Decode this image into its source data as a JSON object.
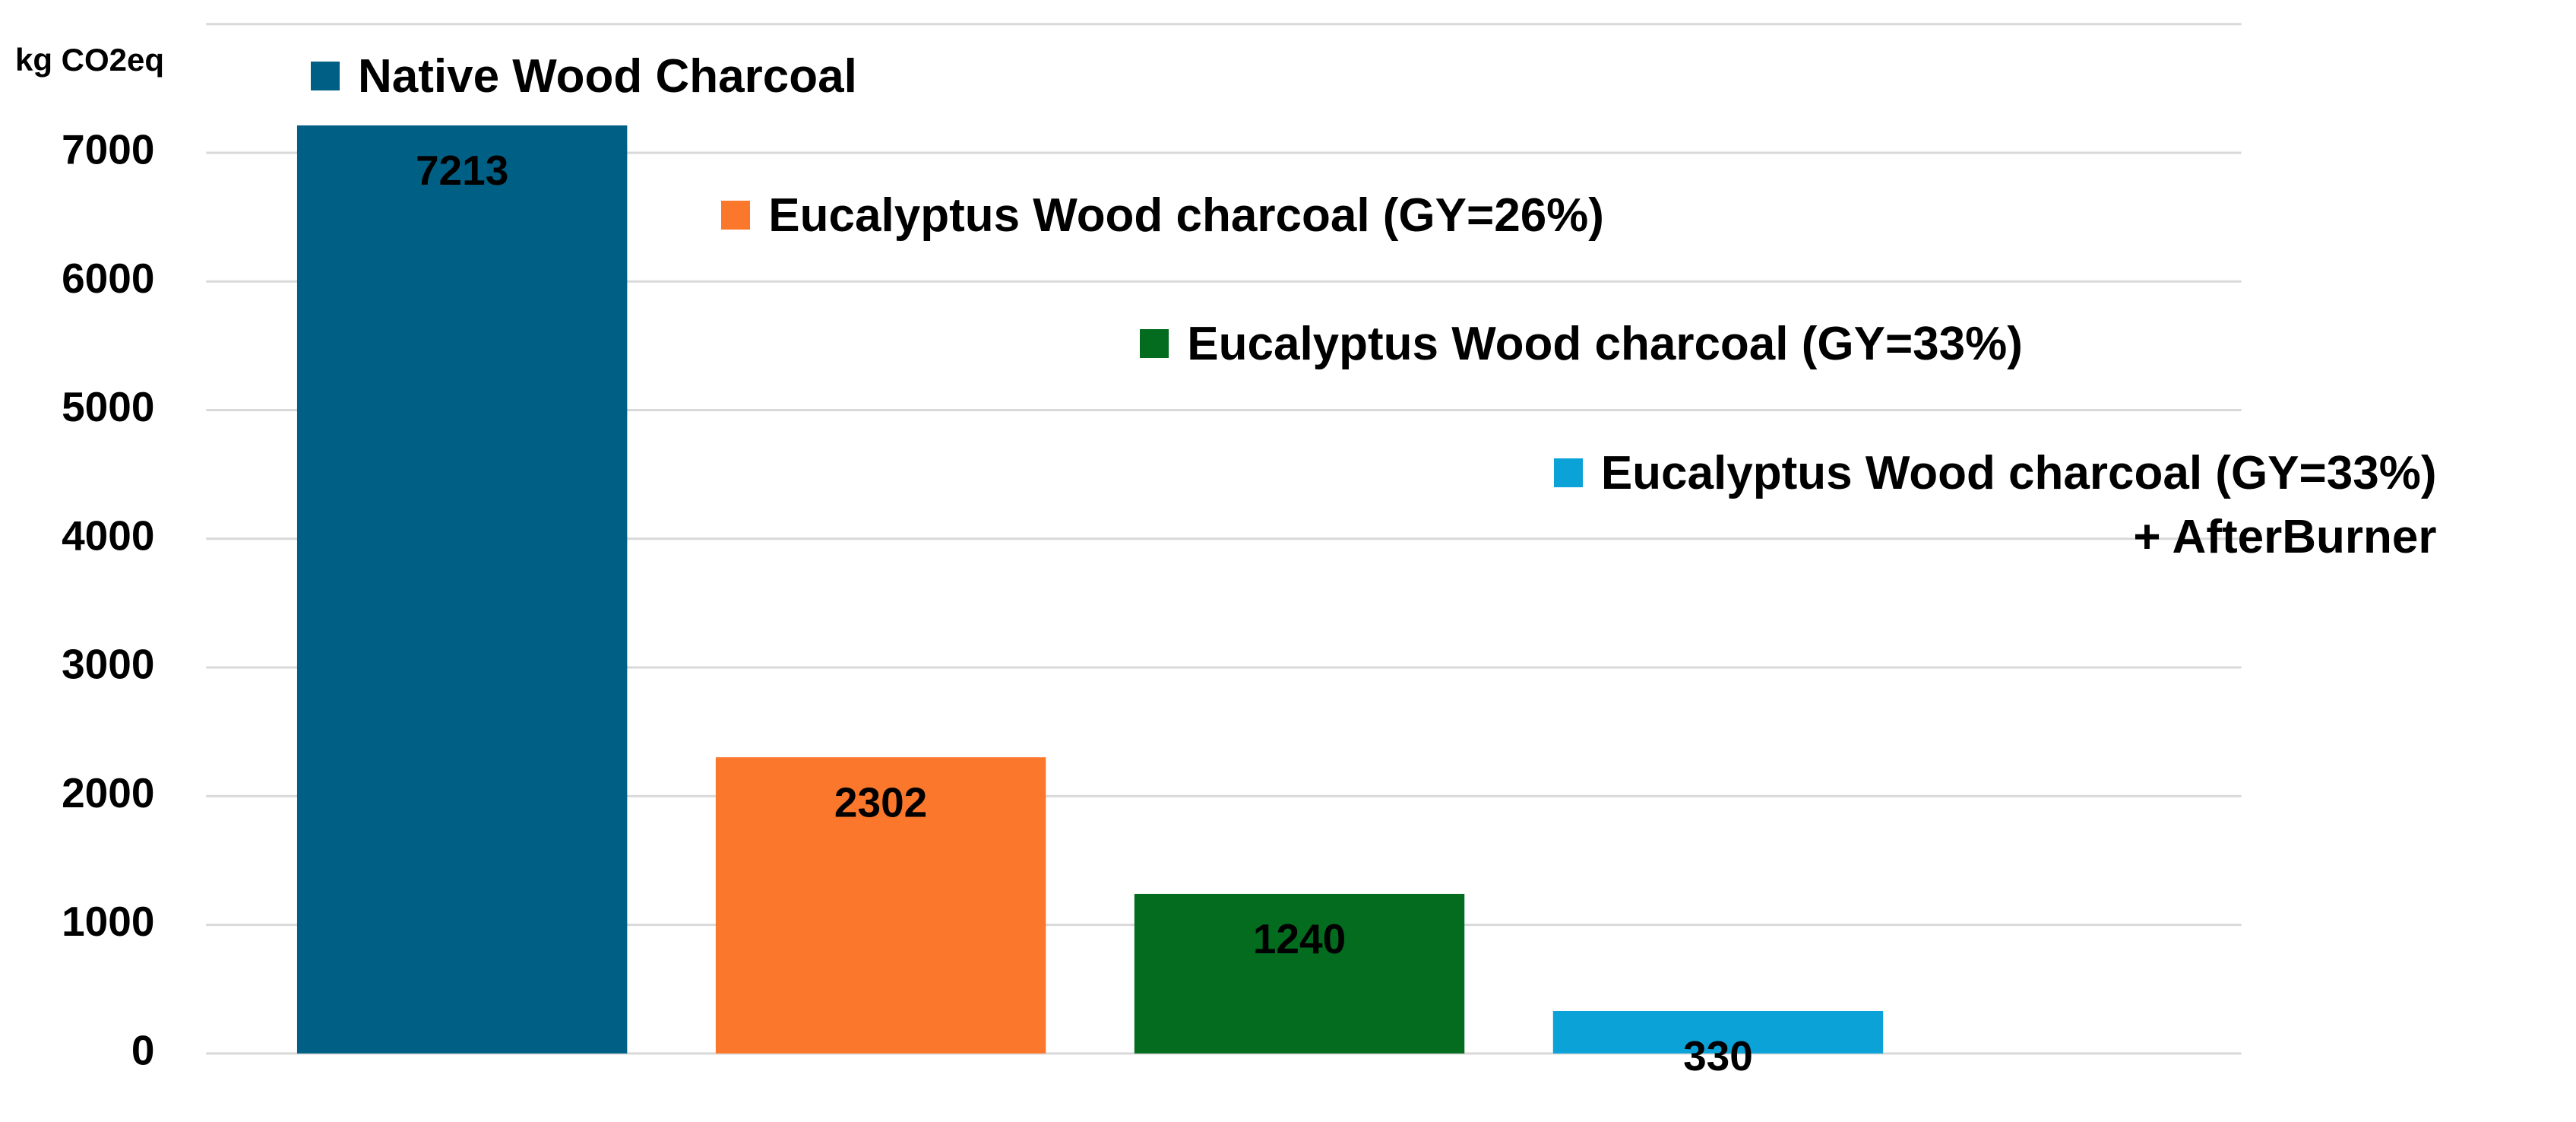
{
  "chart_data": {
    "type": "bar",
    "y_label": "kg CO2eq",
    "series": [
      {
        "name": "Native Wood Charcoal",
        "color": "#005f84",
        "values": [
          7213
        ]
      },
      {
        "name": "Eucalyptus Wood charcoal (GY=26%)",
        "color": "#fb772b",
        "values": [
          2302
        ]
      },
      {
        "name": "Eucalyptus Wood charcoal (GY=33%)",
        "color": "#036c1f",
        "values": [
          1240
        ]
      },
      {
        "name": "Eucalyptus Wood charcoal (GY=33%)\n+ AfterBurner",
        "color": "#0ba2d8",
        "values": [
          330
        ]
      }
    ],
    "ylim": [
      0,
      8000
    ],
    "yticks": [
      0,
      1000,
      2000,
      3000,
      4000,
      5000,
      6000,
      7000
    ],
    "grid": true
  }
}
